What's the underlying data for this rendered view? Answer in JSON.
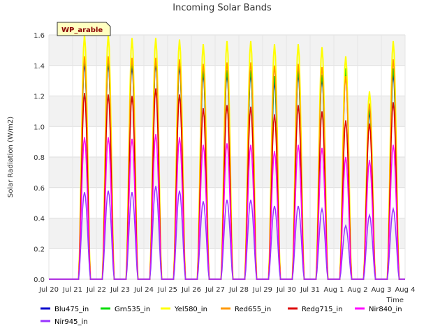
{
  "chart_data": {
    "type": "line",
    "title": "Incoming Solar Bands",
    "xlabel": "Time",
    "ylabel": "Solar Radiation (W/m2)",
    "ylim": [
      0.0,
      1.6
    ],
    "yticks": [
      "0.0",
      "0.2",
      "0.4",
      "0.6",
      "0.8",
      "1.0",
      "1.2",
      "1.4",
      "1.6"
    ],
    "xlim": [
      0,
      15
    ],
    "xticks": [
      "Jul 20",
      "Jul 21",
      "Jul 22",
      "Jul 23",
      "Jul 24",
      "Jul 25",
      "Jul 26",
      "Jul 27",
      "Jul 28",
      "Jul 29",
      "Jul 30",
      "Jul 31",
      "Aug 1",
      "Aug 2",
      "Aug 3",
      "Aug 4"
    ],
    "site_label": "WP_arable",
    "grid": true,
    "legend_position": "bottom",
    "days": [
      "Jul 20",
      "Jul 21",
      "Jul 22",
      "Jul 23",
      "Jul 24",
      "Jul 25",
      "Jul 26",
      "Jul 27",
      "Jul 28",
      "Jul 29",
      "Jul 30",
      "Jul 31",
      "Aug 1",
      "Aug 2",
      "Aug 3"
    ],
    "series": [
      {
        "name": "Blu475_in",
        "color": "#0000cc",
        "daily_peak": [
          0,
          1.42,
          1.42,
          1.4,
          1.42,
          1.4,
          1.35,
          1.35,
          1.35,
          1.3,
          1.35,
          1.32,
          1.35,
          1.1,
          1.35
        ]
      },
      {
        "name": "Grn535_in",
        "color": "#00dd00",
        "daily_peak": [
          0,
          1.45,
          1.44,
          1.43,
          1.44,
          1.42,
          1.37,
          1.37,
          1.37,
          1.33,
          1.37,
          1.34,
          1.38,
          1.12,
          1.38
        ]
      },
      {
        "name": "Yel580_in",
        "color": "#ffff00",
        "daily_peak": [
          0,
          1.6,
          1.6,
          1.58,
          1.58,
          1.57,
          1.54,
          1.56,
          1.56,
          1.54,
          1.54,
          1.52,
          1.46,
          1.23,
          1.56
        ]
      },
      {
        "name": "Red655_in",
        "color": "#ff9900",
        "daily_peak": [
          0,
          1.46,
          1.46,
          1.45,
          1.45,
          1.44,
          1.41,
          1.42,
          1.42,
          1.4,
          1.41,
          1.39,
          1.33,
          1.15,
          1.44
        ]
      },
      {
        "name": "Redg715_in",
        "color": "#dd0000",
        "daily_peak": [
          0,
          1.22,
          1.21,
          1.2,
          1.25,
          1.21,
          1.12,
          1.14,
          1.13,
          1.08,
          1.14,
          1.1,
          1.04,
          1.02,
          1.16
        ]
      },
      {
        "name": "Nir840_in",
        "color": "#ff00ff",
        "daily_peak": [
          0,
          0.93,
          0.93,
          0.92,
          0.95,
          0.93,
          0.88,
          0.89,
          0.88,
          0.84,
          0.88,
          0.86,
          0.8,
          0.78,
          0.88
        ]
      },
      {
        "name": "Nir945_in",
        "color": "#9933ff",
        "daily_peak": [
          0,
          0.57,
          0.58,
          0.57,
          0.61,
          0.58,
          0.51,
          0.52,
          0.52,
          0.48,
          0.48,
          0.46,
          0.35,
          0.42,
          0.46
        ]
      }
    ]
  }
}
